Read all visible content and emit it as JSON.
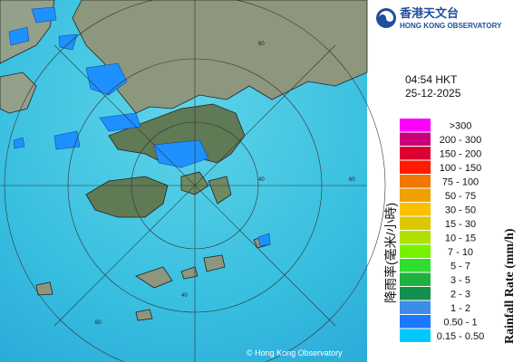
{
  "header": {
    "title_zh": "香港天文台",
    "title_en": "HONG KONG OBSERVATORY"
  },
  "timestamp": {
    "time": "04:54 HKT",
    "date": "25-12-2025"
  },
  "legend": {
    "title_zh": "降雨率(毫米/小時)",
    "title_en": "Rainfall Rate (mm/h)",
    "items": [
      {
        "label": ">300",
        "color": "#ff00ff"
      },
      {
        "label": "200 - 300",
        "color": "#c8007a"
      },
      {
        "label": "150 - 200",
        "color": "#dc0032"
      },
      {
        "label": "100 - 150",
        "color": "#ff1a00"
      },
      {
        "label": "75 - 100",
        "color": "#f07800"
      },
      {
        "label": "50 - 75",
        "color": "#f0a000"
      },
      {
        "label": "30 - 50",
        "color": "#f8c000"
      },
      {
        "label": "15 - 30",
        "color": "#dcc800"
      },
      {
        "label": "10 - 15",
        "color": "#b0e000"
      },
      {
        "label": "7 - 10",
        "color": "#78f000"
      },
      {
        "label": "5 - 7",
        "color": "#30dc30"
      },
      {
        "label": "3 - 5",
        "color": "#20b040"
      },
      {
        "label": "2 - 3",
        "color": "#129050"
      },
      {
        "label": "1 - 2",
        "color": "#3c8ce8"
      },
      {
        "label": "0.50 - 1",
        "color": "#1e78ff"
      },
      {
        "label": "0.15 - 0.50",
        "color": "#00c8ff"
      }
    ]
  },
  "map": {
    "ring_labels": [
      "60",
      "60",
      "40",
      "40",
      "60"
    ],
    "copyright": "© Hong Kong Observatory"
  }
}
